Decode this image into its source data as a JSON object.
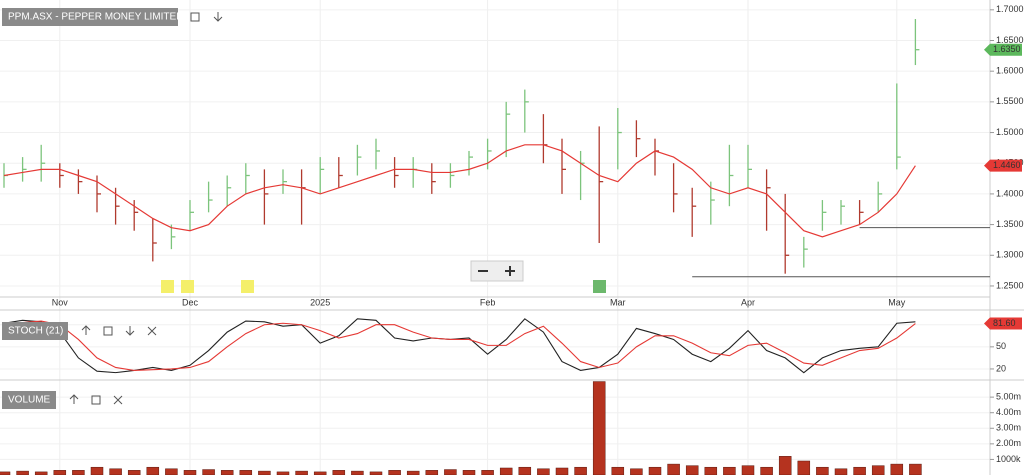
{
  "chart_data": [
    {
      "type": "ohlc",
      "title": "PPM.ASX - PEPPER MONEY LIMITED",
      "categories": [
        null,
        null,
        null,
        "Nov",
        null,
        null,
        null,
        null,
        null,
        null,
        "Dec",
        null,
        null,
        null,
        null,
        null,
        null,
        "2025",
        null,
        null,
        null,
        null,
        null,
        null,
        null,
        null,
        "Feb",
        null,
        null,
        null,
        null,
        null,
        null,
        "Mar",
        null,
        null,
        null,
        null,
        null,
        null,
        "Apr",
        null,
        null,
        null,
        null,
        null,
        null,
        null,
        "May",
        null
      ],
      "high": [
        1.45,
        1.46,
        1.48,
        1.45,
        1.44,
        1.43,
        1.41,
        1.39,
        1.36,
        1.35,
        1.39,
        1.42,
        1.43,
        1.45,
        1.44,
        1.44,
        1.44,
        1.46,
        1.46,
        1.48,
        1.49,
        1.46,
        1.46,
        1.45,
        1.45,
        1.47,
        1.49,
        1.55,
        1.57,
        1.53,
        1.49,
        1.47,
        1.51,
        1.54,
        1.52,
        1.49,
        1.45,
        1.41,
        1.42,
        1.48,
        1.48,
        1.44,
        1.4,
        1.33,
        1.39,
        1.39,
        1.39,
        1.42,
        1.58,
        1.685
      ],
      "low": [
        1.41,
        1.42,
        1.42,
        1.41,
        1.4,
        1.37,
        1.35,
        1.34,
        1.29,
        1.31,
        1.34,
        1.37,
        1.38,
        1.4,
        1.35,
        1.4,
        1.35,
        1.4,
        1.41,
        1.43,
        1.44,
        1.41,
        1.41,
        1.4,
        1.41,
        1.43,
        1.44,
        1.46,
        1.5,
        1.45,
        1.4,
        1.39,
        1.32,
        1.44,
        1.46,
        1.43,
        1.37,
        1.33,
        1.35,
        1.38,
        1.41,
        1.34,
        1.27,
        1.28,
        1.34,
        1.35,
        1.35,
        1.37,
        1.44,
        1.61
      ],
      "close": [
        1.43,
        1.44,
        1.45,
        1.43,
        1.42,
        1.4,
        1.38,
        1.37,
        1.32,
        1.33,
        1.37,
        1.39,
        1.41,
        1.43,
        1.4,
        1.42,
        1.41,
        1.44,
        1.43,
        1.46,
        1.47,
        1.43,
        1.44,
        1.42,
        1.43,
        1.46,
        1.47,
        1.53,
        1.55,
        1.48,
        1.44,
        1.45,
        1.42,
        1.5,
        1.49,
        1.47,
        1.4,
        1.38,
        1.39,
        1.43,
        1.44,
        1.41,
        1.3,
        1.31,
        1.37,
        1.38,
        1.37,
        1.4,
        1.46,
        1.635
      ],
      "ma": [
        1.43,
        1.435,
        1.44,
        1.44,
        1.43,
        1.42,
        1.4,
        1.38,
        1.36,
        1.345,
        1.34,
        1.35,
        1.38,
        1.4,
        1.41,
        1.415,
        1.41,
        1.4,
        1.41,
        1.42,
        1.43,
        1.44,
        1.44,
        1.435,
        1.435,
        1.44,
        1.45,
        1.47,
        1.48,
        1.48,
        1.47,
        1.45,
        1.43,
        1.42,
        1.45,
        1.47,
        1.46,
        1.44,
        1.41,
        1.4,
        1.41,
        1.4,
        1.37,
        1.34,
        1.33,
        1.34,
        1.35,
        1.37,
        1.4,
        1.446
      ],
      "up_color": "#7cc47c",
      "down_color": "#b03a2e",
      "ma_color": "#e53935",
      "ylim": [
        1.232,
        1.716
      ],
      "yticks": [
        {
          "value": 1.25,
          "label": "1.2500"
        },
        {
          "value": 1.3,
          "label": "1.3000"
        },
        {
          "value": 1.35,
          "label": "1.3500"
        },
        {
          "value": 1.4,
          "label": "1.4000"
        },
        {
          "value": 1.45,
          "label": "1.4500"
        },
        {
          "value": 1.5,
          "label": "1.5000"
        },
        {
          "value": 1.55,
          "label": "1.5500"
        },
        {
          "value": 1.6,
          "label": "1.6000"
        },
        {
          "value": 1.65,
          "label": "1.6500"
        },
        {
          "value": 1.7,
          "label": "1.7000"
        }
      ],
      "grid": true,
      "tags": [
        {
          "value": 1.635,
          "label": "1.6350",
          "color": "#5cb85c"
        },
        {
          "value": 1.446,
          "label": "1.4460",
          "color": "#e53935"
        }
      ],
      "levels": [
        {
          "value": 1.345,
          "start": 46
        },
        {
          "value": 1.265,
          "start": 37
        }
      ]
    },
    {
      "type": "line",
      "title": "STOCH (21)",
      "series": [
        {
          "color": "#222222",
          "values": [
            82,
            86,
            84,
            70,
            35,
            17,
            15,
            18,
            22,
            18,
            25,
            45,
            70,
            85,
            84,
            78,
            80,
            55,
            65,
            88,
            86,
            62,
            58,
            62,
            60,
            62,
            40,
            60,
            88,
            70,
            30,
            18,
            22,
            40,
            75,
            68,
            60,
            40,
            30,
            48,
            72,
            45,
            35,
            15,
            35,
            45,
            48,
            50,
            82,
            84
          ]
        },
        {
          "color": "#e53935",
          "values": [
            80,
            83,
            85,
            80,
            60,
            35,
            22,
            18,
            19,
            20,
            22,
            30,
            50,
            68,
            80,
            82,
            80,
            72,
            62,
            68,
            80,
            80,
            70,
            62,
            60,
            60,
            52,
            52,
            68,
            78,
            55,
            30,
            22,
            28,
            50,
            65,
            65,
            55,
            42,
            38,
            52,
            55,
            42,
            28,
            25,
            35,
            45,
            48,
            62,
            81.6
          ]
        }
      ],
      "ylim": [
        5,
        100
      ],
      "yticks": [
        20,
        50,
        80
      ],
      "tags": [
        {
          "value": 81.6,
          "label": "81.60",
          "color": "#e53935"
        }
      ]
    },
    {
      "type": "bar",
      "title": "VOLUME",
      "color": "#b5331f",
      "values": [
        200000,
        250000,
        200000,
        300000,
        300000,
        500000,
        400000,
        300000,
        500000,
        400000,
        300000,
        350000,
        300000,
        300000,
        250000,
        200000,
        250000,
        200000,
        300000,
        250000,
        200000,
        300000,
        250000,
        300000,
        350000,
        300000,
        300000,
        450000,
        500000,
        400000,
        450000,
        500000,
        6000000,
        500000,
        400000,
        500000,
        700000,
        600000,
        500000,
        500000,
        600000,
        500000,
        1200000,
        900000,
        500000,
        400000,
        500000,
        600000,
        700000,
        700000
      ],
      "ylim": [
        0,
        6100000
      ],
      "yticks": [
        {
          "value": 1000000,
          "label": "1000k"
        },
        {
          "value": 2000000,
          "label": "2.00m"
        },
        {
          "value": 3000000,
          "label": "3.00m"
        },
        {
          "value": 4000000,
          "label": "4.00m"
        },
        {
          "value": 5000000,
          "label": "5.00m"
        }
      ]
    }
  ]
}
